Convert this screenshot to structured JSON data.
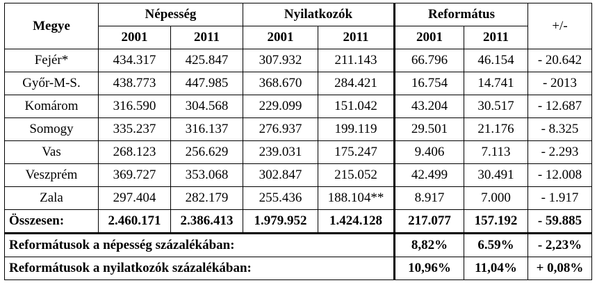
{
  "header": {
    "megye": "Megye",
    "nepesseg": "Népesség",
    "nyilatkozok": "Nyilatkozók",
    "reformatus": "Református",
    "change": "+/-",
    "year_2001": "2001",
    "year_2011": "2011"
  },
  "rows": [
    {
      "county": "Fejér*",
      "pop2001": "434.317",
      "pop2011": "425.847",
      "decl2001": "307.932",
      "decl2011": "211.143",
      "ref2001": "66.796",
      "ref2011": "46.154",
      "diff": "- 20.642"
    },
    {
      "county": "Győr-M-S.",
      "pop2001": "438.773",
      "pop2011": "447.985",
      "decl2001": "368.670",
      "decl2011": "284.421",
      "ref2001": "16.754",
      "ref2011": "14.741",
      "diff": "- 2013"
    },
    {
      "county": "Komárom",
      "pop2001": "316.590",
      "pop2011": "304.568",
      "decl2001": "229.099",
      "decl2011": "151.042",
      "ref2001": "43.204",
      "ref2011": "30.517",
      "diff": "- 12.687"
    },
    {
      "county": "Somogy",
      "pop2001": "335.237",
      "pop2011": "316.137",
      "decl2001": "276.937",
      "decl2011": "199.119",
      "ref2001": "29.501",
      "ref2011": "21.176",
      "diff": "- 8.325"
    },
    {
      "county": "Vas",
      "pop2001": "268.123",
      "pop2011": "256.629",
      "decl2001": "239.031",
      "decl2011": "175.247",
      "ref2001": "9.406",
      "ref2011": "7.113",
      "diff": "- 2.293"
    },
    {
      "county": "Veszprém",
      "pop2001": "369.727",
      "pop2011": "353.068",
      "decl2001": "302.847",
      "decl2011": "215.052",
      "ref2001": "42.499",
      "ref2011": "30.491",
      "diff": "- 12.008"
    },
    {
      "county": "Zala",
      "pop2001": "297.404",
      "pop2011": "282.179",
      "decl2001": "255.436",
      "decl2011": "188.104**",
      "ref2001": "8.917",
      "ref2011": "7.000",
      "diff": "- 1.917"
    }
  ],
  "total": {
    "label": "Összesen:",
    "pop2001": "2.460.171",
    "pop2011": "2.386.413",
    "decl2001": "1.979.952",
    "decl2011": "1.424.128",
    "ref2001": "217.077",
    "ref2011": "157.192",
    "diff": "- 59.885"
  },
  "summary": [
    {
      "label": "Reformátusok a népesség százalékában:",
      "ref2001": "8,82%",
      "ref2011": "6.59%",
      "diff": "- 2,23%"
    },
    {
      "label": "Reformátusok a nyilatkozók százalékában:",
      "ref2001": "10,96%",
      "ref2011": "11,04%",
      "diff": "+ 0,08%"
    }
  ]
}
